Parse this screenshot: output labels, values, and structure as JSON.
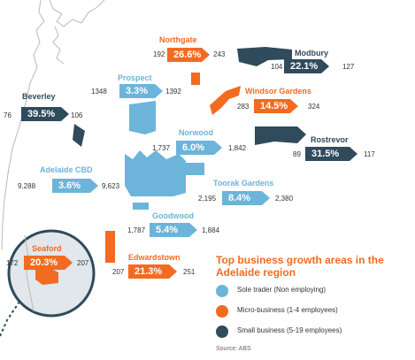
{
  "colors": {
    "sole_trader": "#6cb4d9",
    "micro_business": "#f26b21",
    "small_business": "#2f4b5c",
    "coastline": "#b9b9b9",
    "inset_bg": "#e1e7ea"
  },
  "suburbs": [
    {
      "id": "northgate",
      "name": "Northgate",
      "category": "micro_business",
      "growth": "26.6%",
      "from": "192",
      "to": "243"
    },
    {
      "id": "modbury",
      "name": "Modbury",
      "category": "small_business",
      "growth": "22.1%",
      "from": "104",
      "to": "127"
    },
    {
      "id": "prospect",
      "name": "Prospect",
      "category": "sole_trader",
      "growth": "3.3%",
      "from": "1348",
      "to": "1392"
    },
    {
      "id": "windsor-gardens",
      "name": "Windsor Gardens",
      "category": "micro_business",
      "growth": "14.5%",
      "from": "283",
      "to": "324"
    },
    {
      "id": "beverley",
      "name": "Beverley",
      "category": "small_business",
      "growth": "39.5%",
      "from": "76",
      "to": "106"
    },
    {
      "id": "norwood",
      "name": "Norwood",
      "category": "sole_trader",
      "growth": "6.0%",
      "from": "1,737",
      "to": "1,842"
    },
    {
      "id": "rostrevor",
      "name": "Rostrevor",
      "category": "small_business",
      "growth": "31.5%",
      "from": "89",
      "to": "117"
    },
    {
      "id": "adelaide-cbd",
      "name": "Adelaide CBD",
      "category": "sole_trader",
      "growth": "3.6%",
      "from": "9,288",
      "to": "9,623"
    },
    {
      "id": "toorak-gardens",
      "name": "Toorak Gardens",
      "category": "sole_trader",
      "growth": "8.4%",
      "from": "2,195",
      "to": "2,380"
    },
    {
      "id": "goodwood",
      "name": "Goodwood",
      "category": "sole_trader",
      "growth": "5.4%",
      "from": "1,787",
      "to": "1,884"
    },
    {
      "id": "seaford",
      "name": "Seaford",
      "category": "micro_business",
      "growth": "20.3%",
      "from": "172",
      "to": "207"
    },
    {
      "id": "edwardstown",
      "name": "Edwardstown",
      "category": "micro_business",
      "growth": "21.3%",
      "from": "207",
      "to": "251"
    }
  ],
  "legend": {
    "title": "Top business growth areas in the Adelaide region",
    "items": [
      {
        "key": "sole_trader",
        "label": "Sole trader (Non employing)"
      },
      {
        "key": "micro_business",
        "label": "Micro-business (1-4 employees)"
      },
      {
        "key": "small_business",
        "label": "Small business (5-19 employees)"
      }
    ]
  },
  "source": "Source: ABS"
}
